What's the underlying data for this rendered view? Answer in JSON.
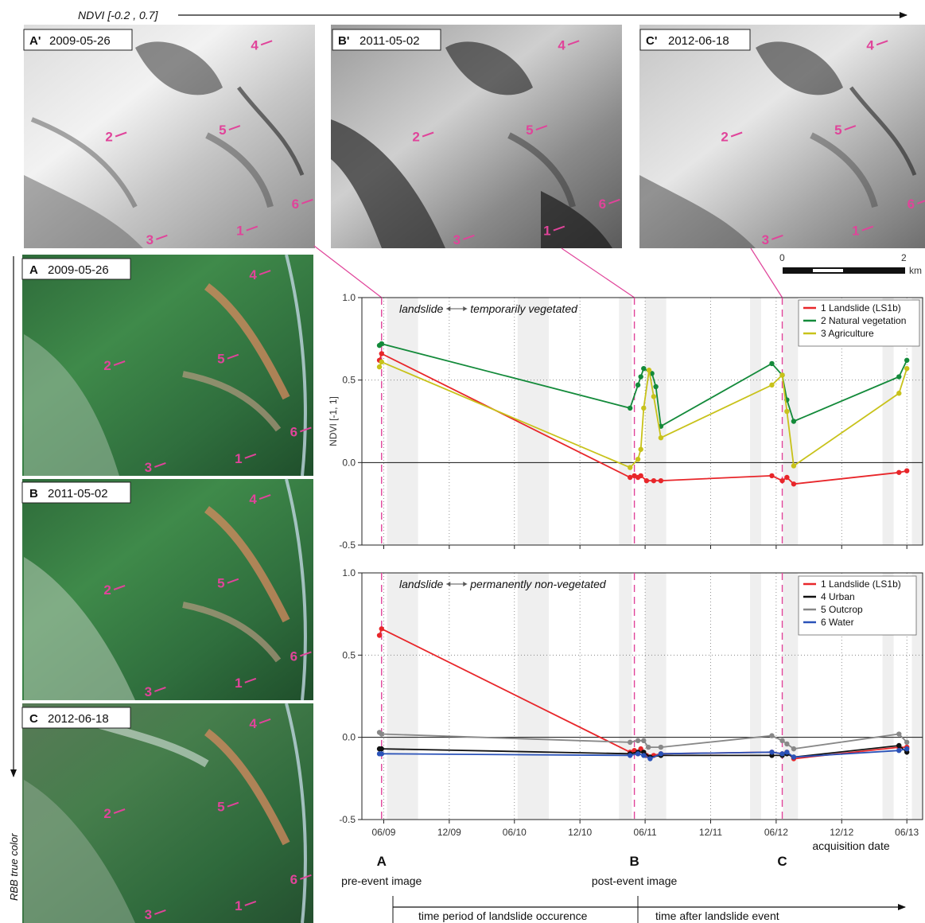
{
  "ndvi_arrow_label": "NDVI [-0.2 , 0.7]",
  "rgb_arrow_label": "RBB true color",
  "ndvi_panels": [
    {
      "id": "A'",
      "date": "2009-05-26"
    },
    {
      "id": "B'",
      "date": "2011-05-02"
    },
    {
      "id": "C'",
      "date": "2012-06-18"
    }
  ],
  "rgb_panels": [
    {
      "id": "A",
      "date": "2009-05-26"
    },
    {
      "id": "B",
      "date": "2011-05-02"
    },
    {
      "id": "C",
      "date": "2012-06-18"
    }
  ],
  "site_markers": [
    "1",
    "2",
    "3",
    "4",
    "5",
    "6"
  ],
  "scalebar": {
    "start": "0",
    "end": "2",
    "unit": "km"
  },
  "colors": {
    "landslide": "#e8262a",
    "natural_vegetation": "#138a3a",
    "agriculture": "#c8c21a",
    "urban": "#111111",
    "outcrop": "#888888",
    "water": "#2a52b8",
    "connector": "#e0449a",
    "shade": "#efefef"
  },
  "event_markers": [
    {
      "letter": "A",
      "caption": "pre-event image"
    },
    {
      "letter": "B",
      "caption": "post-event image"
    },
    {
      "letter": "C",
      "caption": ""
    }
  ],
  "timeline": {
    "period_label": "time period of landslide occurence",
    "after_label": "time after landslide event"
  },
  "chart_data": [
    {
      "type": "line",
      "annotation_left": "landslide",
      "annotation_right": "temporarily vegetated",
      "ylabel": "NDVI [-1, 1]",
      "xlabel": "",
      "ylim": [
        -0.5,
        1.0
      ],
      "yticks": [
        "1.0",
        "0.5",
        "0.0",
        "-0.5"
      ],
      "xticks": [],
      "grid": "dotted",
      "legend_position": "top-right",
      "series": [
        {
          "name": "1 Landslide (LS1b)",
          "color_key": "landslide",
          "points": [
            [
              "2009-05-20",
              0.62
            ],
            [
              "2009-05-26",
              0.66
            ],
            [
              "2011-04-20",
              -0.09
            ],
            [
              "2011-05-02",
              -0.08
            ],
            [
              "2011-05-12",
              -0.09
            ],
            [
              "2011-05-20",
              -0.08
            ],
            [
              "2011-06-05",
              -0.11
            ],
            [
              "2011-06-25",
              -0.11
            ],
            [
              "2011-07-15",
              -0.11
            ],
            [
              "2012-05-20",
              -0.08
            ],
            [
              "2012-06-18",
              -0.11
            ],
            [
              "2012-07-01",
              -0.09
            ],
            [
              "2012-07-20",
              -0.13
            ],
            [
              "2013-05-10",
              -0.06
            ],
            [
              "2013-06-01",
              -0.05
            ]
          ]
        },
        {
          "name": "2 Natural vegetation",
          "color_key": "natural_vegetation",
          "points": [
            [
              "2009-05-20",
              0.71
            ],
            [
              "2009-05-26",
              0.72
            ],
            [
              "2011-04-20",
              0.33
            ],
            [
              "2011-05-12",
              0.47
            ],
            [
              "2011-05-20",
              0.52
            ],
            [
              "2011-05-28",
              0.57
            ],
            [
              "2011-06-20",
              0.54
            ],
            [
              "2011-07-01",
              0.46
            ],
            [
              "2011-07-15",
              0.22
            ],
            [
              "2012-05-20",
              0.6
            ],
            [
              "2012-06-18",
              0.53
            ],
            [
              "2012-07-01",
              0.38
            ],
            [
              "2012-07-20",
              0.25
            ],
            [
              "2013-05-10",
              0.52
            ],
            [
              "2013-06-01",
              0.62
            ]
          ]
        },
        {
          "name": "3 Agriculture",
          "color_key": "agriculture",
          "points": [
            [
              "2009-05-20",
              0.58
            ],
            [
              "2009-05-26",
              0.61
            ],
            [
              "2011-04-20",
              -0.03
            ],
            [
              "2011-05-12",
              0.02
            ],
            [
              "2011-05-20",
              0.08
            ],
            [
              "2011-05-28",
              0.33
            ],
            [
              "2011-06-12",
              0.56
            ],
            [
              "2011-06-25",
              0.4
            ],
            [
              "2011-07-15",
              0.15
            ],
            [
              "2012-05-20",
              0.47
            ],
            [
              "2012-06-18",
              0.53
            ],
            [
              "2012-07-01",
              0.31
            ],
            [
              "2012-07-20",
              -0.02
            ],
            [
              "2013-05-10",
              0.42
            ],
            [
              "2013-06-01",
              0.57
            ]
          ]
        }
      ]
    },
    {
      "type": "line",
      "annotation_left": "landslide",
      "annotation_right": "permanently non-vegetated",
      "ylabel": "",
      "xlabel": "acquisition date",
      "ylim": [
        -0.5,
        1.0
      ],
      "yticks": [
        "1.0",
        "0.5",
        "0.0",
        "-0.5"
      ],
      "xticks": [
        "06/09",
        "12/09",
        "06/10",
        "12/10",
        "06/11",
        "12/11",
        "06/12",
        "12/12",
        "06/13"
      ],
      "grid": "dotted",
      "legend_position": "top-right",
      "series": [
        {
          "name": "1 Landslide (LS1b)",
          "color_key": "landslide",
          "points": [
            [
              "2009-05-20",
              0.62
            ],
            [
              "2009-05-26",
              0.66
            ],
            [
              "2011-04-20",
              -0.09
            ],
            [
              "2011-05-02",
              -0.08
            ],
            [
              "2011-05-12",
              -0.1
            ],
            [
              "2011-05-20",
              -0.07
            ],
            [
              "2011-06-05",
              -0.11
            ],
            [
              "2011-06-25",
              -0.11
            ],
            [
              "2011-07-15",
              -0.1
            ],
            [
              "2012-05-20",
              -0.09
            ],
            [
              "2012-06-18",
              -0.1
            ],
            [
              "2012-07-01",
              -0.09
            ],
            [
              "2012-07-20",
              -0.13
            ],
            [
              "2013-05-10",
              -0.06
            ],
            [
              "2013-06-01",
              -0.06
            ]
          ]
        },
        {
          "name": "4 Urban",
          "color_key": "urban",
          "points": [
            [
              "2009-05-20",
              -0.07
            ],
            [
              "2009-05-26",
              -0.07
            ],
            [
              "2011-04-20",
              -0.1
            ],
            [
              "2011-05-12",
              -0.09
            ],
            [
              "2011-05-28",
              -0.09
            ],
            [
              "2011-06-15",
              -0.12
            ],
            [
              "2011-07-15",
              -0.11
            ],
            [
              "2012-05-20",
              -0.11
            ],
            [
              "2012-06-18",
              -0.11
            ],
            [
              "2012-07-01",
              -0.1
            ],
            [
              "2012-07-20",
              -0.12
            ],
            [
              "2013-05-10",
              -0.05
            ],
            [
              "2013-06-01",
              -0.09
            ]
          ]
        },
        {
          "name": "5 Outcrop",
          "color_key": "outcrop",
          "points": [
            [
              "2009-05-20",
              0.03
            ],
            [
              "2009-05-26",
              0.02
            ],
            [
              "2011-04-20",
              -0.03
            ],
            [
              "2011-05-12",
              -0.02
            ],
            [
              "2011-05-28",
              -0.02
            ],
            [
              "2011-06-10",
              -0.06
            ],
            [
              "2011-07-15",
              -0.06
            ],
            [
              "2012-05-20",
              0.01
            ],
            [
              "2012-06-18",
              -0.02
            ],
            [
              "2012-07-01",
              -0.04
            ],
            [
              "2012-07-20",
              -0.07
            ],
            [
              "2013-05-10",
              0.02
            ],
            [
              "2013-06-01",
              -0.03
            ]
          ]
        },
        {
          "name": "6 Water",
          "color_key": "water",
          "points": [
            [
              "2009-05-20",
              -0.1
            ],
            [
              "2009-05-26",
              -0.1
            ],
            [
              "2011-04-20",
              -0.11
            ],
            [
              "2011-05-12",
              -0.1
            ],
            [
              "2011-05-28",
              -0.11
            ],
            [
              "2011-06-15",
              -0.13
            ],
            [
              "2011-07-15",
              -0.1
            ],
            [
              "2012-05-20",
              -0.09
            ],
            [
              "2012-06-18",
              -0.1
            ],
            [
              "2012-07-01",
              -0.09
            ],
            [
              "2012-07-20",
              -0.12
            ],
            [
              "2013-05-10",
              -0.08
            ],
            [
              "2013-06-01",
              -0.07
            ]
          ]
        }
      ]
    }
  ]
}
